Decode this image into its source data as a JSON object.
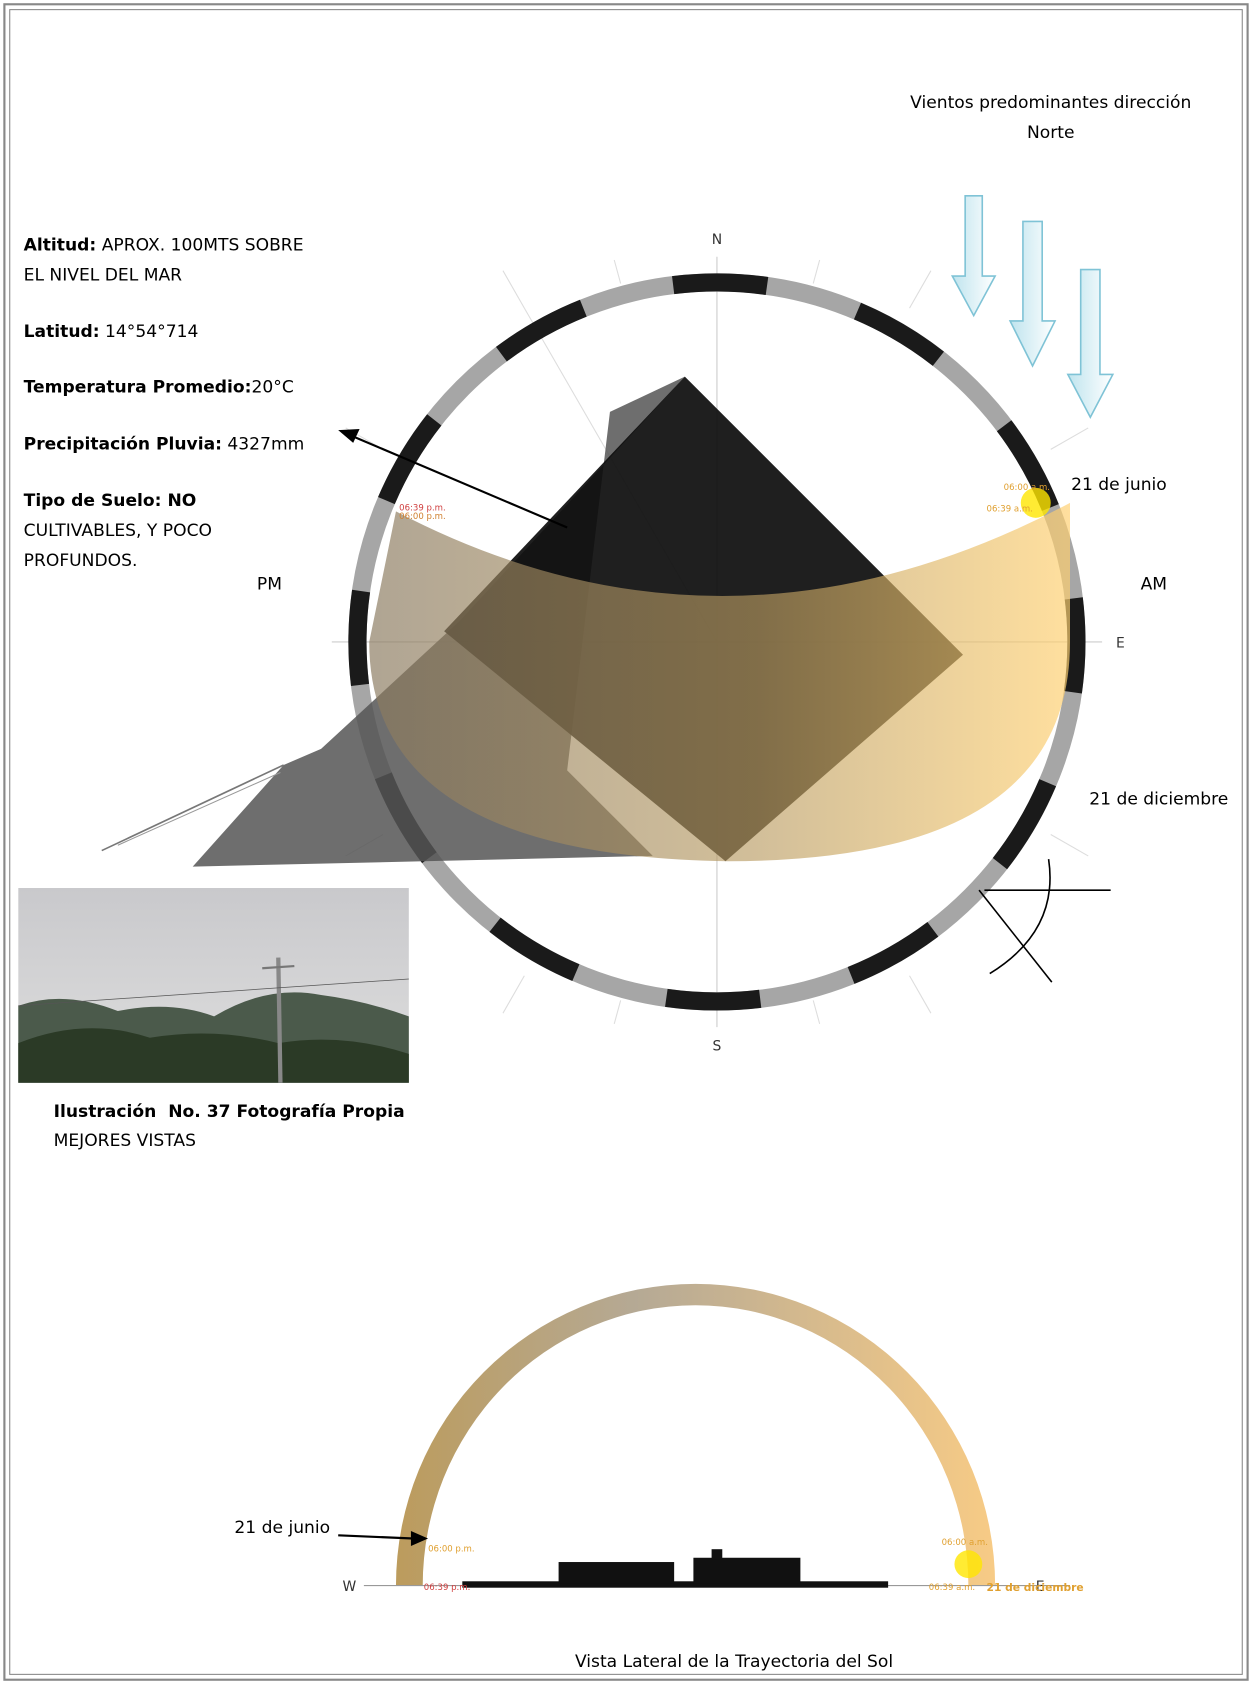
{
  "wind_note": {
    "line1": "Vientos predominantes dirección",
    "line2": "Norte"
  },
  "site_info": [
    {
      "label": "Altitud:",
      "value": " APROX. 100MTS SOBRE",
      "more": [
        "EL NIVEL DEL MAR"
      ]
    },
    {
      "label": "Latitud:",
      "value": " 14°54°714"
    },
    {
      "label": "Temperatura Promedio:",
      "value": "20°C"
    },
    {
      "label": "Precipitación Pluvia:",
      "value": " 4327mm"
    },
    {
      "label": "Tipo de Suelo: NO",
      "more": [
        "CULTIVABLES, Y POCO",
        "PROFUNDOS."
      ]
    }
  ],
  "compass": {
    "north": "N",
    "south": "S",
    "east": "E",
    "pm": "PM",
    "am": "AM"
  },
  "plan_labels": {
    "june": "21 de junio",
    "december": "21 de diciembre",
    "times": [
      "06:39 p.m.",
      "06:00 p.m.",
      "06:00 a.m.",
      "06:39 a.m."
    ]
  },
  "caption": {
    "title": "Ilustración  No. 37 Fotografía Propia",
    "subtitle": "MEJORES VISTAS"
  },
  "section": {
    "june": "21 de junio",
    "west": "W",
    "east": "E",
    "times": [
      "06:00 p.m.",
      "06:39 p.m.",
      "06:00 a.m.",
      "06:39 a.m."
    ],
    "december": "21 de diciembre",
    "title": "Vista Lateral de la Trayectoria del Sol"
  }
}
